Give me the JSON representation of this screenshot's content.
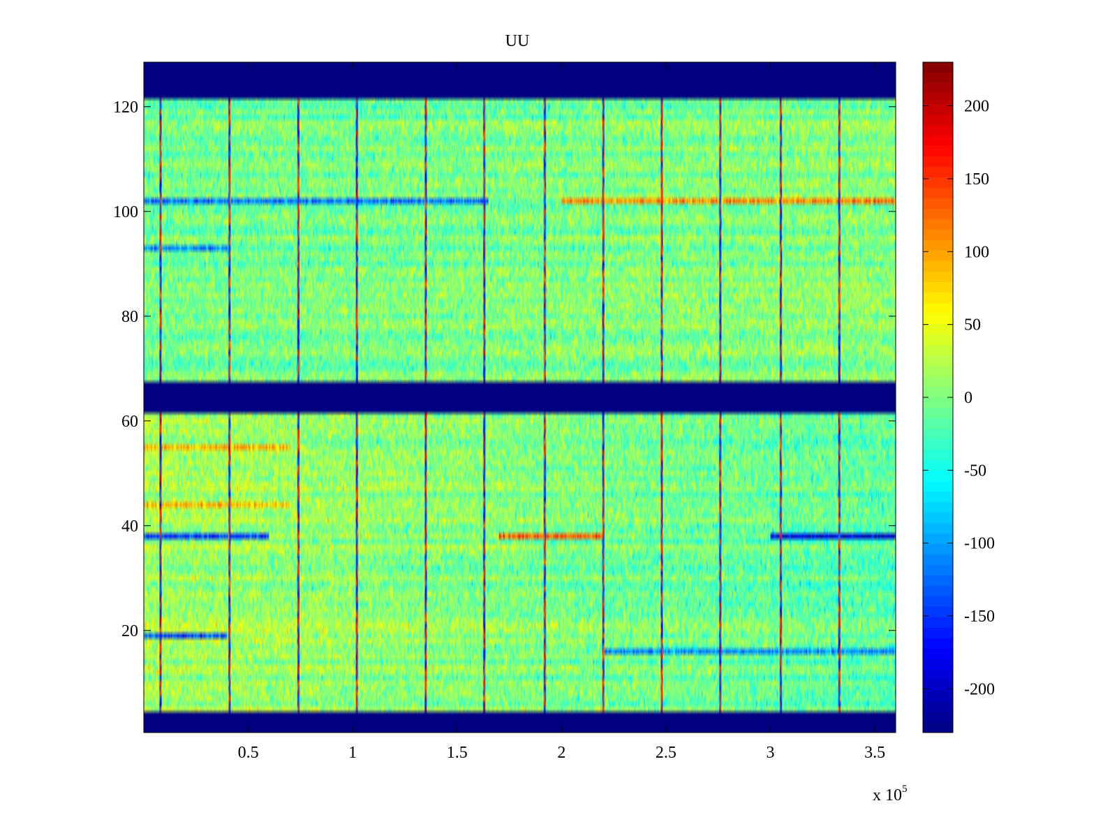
{
  "chart_data": {
    "type": "heatmap",
    "title": "UU",
    "xlabel": "",
    "ylabel": "",
    "x_range": [
      0,
      360000
    ],
    "y_range": [
      0.5,
      128.5
    ],
    "x_ticks": [
      0.5,
      1,
      1.5,
      2,
      2.5,
      3,
      3.5
    ],
    "x_tick_labels": [
      "0.5",
      "1",
      "1.5",
      "2",
      "2.5",
      "3",
      "3.5"
    ],
    "x_multiplier_base": "x 10",
    "x_multiplier_exponent": "5",
    "y_ticks": [
      20,
      40,
      60,
      80,
      100,
      120
    ],
    "y_tick_labels": [
      "20",
      "40",
      "60",
      "80",
      "100",
      "120"
    ],
    "colorbar": {
      "colormap": "jet",
      "range": [
        -230,
        230
      ],
      "ticks": [
        -200,
        -150,
        -100,
        -50,
        0,
        50,
        100,
        150,
        200
      ],
      "tick_labels": [
        "-200",
        "-150",
        "-100",
        "-50",
        "0",
        "50",
        "100",
        "150",
        "200"
      ]
    },
    "masked_rows": [
      [
        1,
        4
      ],
      [
        62,
        67
      ],
      [
        122,
        128
      ]
    ],
    "masked_value": -230,
    "vertical_event_lines_x": [
      8000,
      41000,
      74000,
      102000,
      135000,
      163000,
      192000,
      220000,
      248000,
      276000,
      305000,
      333000
    ],
    "row_trends": [
      {
        "row": 102,
        "x_from": 0,
        "x_to": 165000,
        "value": -120
      },
      {
        "row": 102,
        "x_from": 200000,
        "x_to": 360000,
        "value": 110
      },
      {
        "row": 38,
        "x_from": 0,
        "x_to": 60000,
        "value": -150
      },
      {
        "row": 38,
        "x_from": 170000,
        "x_to": 220000,
        "value": 130
      },
      {
        "row": 38,
        "x_from": 300000,
        "x_to": 360000,
        "value": -190
      },
      {
        "row": 19,
        "x_from": 0,
        "x_to": 40000,
        "value": -140
      },
      {
        "row": 16,
        "x_from": 220000,
        "x_to": 360000,
        "value": -110
      },
      {
        "row": 44,
        "x_from": 0,
        "x_to": 70000,
        "value": 90
      },
      {
        "row": 55,
        "x_from": 0,
        "x_to": 70000,
        "value": 90
      },
      {
        "row": 93,
        "x_from": 0,
        "x_to": 40000,
        "value": -110
      }
    ]
  }
}
